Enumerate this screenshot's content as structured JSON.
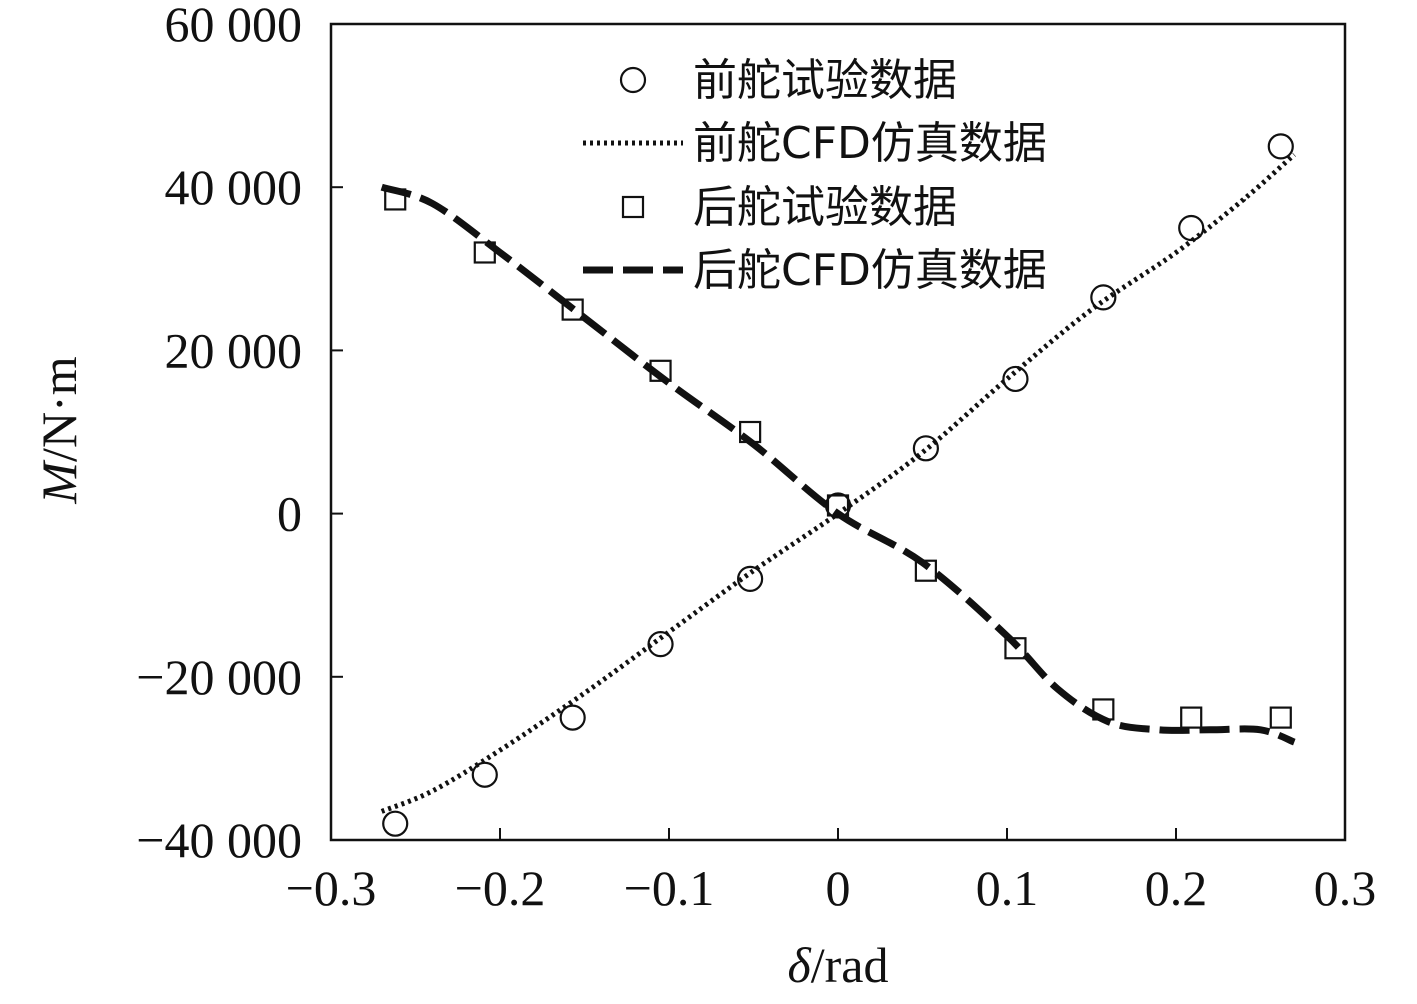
{
  "chart_data": {
    "type": "line",
    "xlabel_symbol": "δ",
    "xlabel_unit": "/rad",
    "ylabel_symbol": "M",
    "ylabel_unit": "/N·m",
    "xlim": [
      -0.3,
      0.3
    ],
    "ylim": [
      -40000,
      60000
    ],
    "x_ticks": [
      {
        "value": -0.3,
        "label": "−0.3"
      },
      {
        "value": -0.2,
        "label": "−0.2"
      },
      {
        "value": -0.1,
        "label": "−0.1"
      },
      {
        "value": 0,
        "label": "0"
      },
      {
        "value": 0.1,
        "label": "0.1"
      },
      {
        "value": 0.2,
        "label": "0.2"
      },
      {
        "value": 0.3,
        "label": "0.3"
      }
    ],
    "y_ticks": [
      {
        "value": 60000,
        "label": "60 000"
      },
      {
        "value": 40000,
        "label": "40 000"
      },
      {
        "value": 20000,
        "label": "20 000"
      },
      {
        "value": 0,
        "label": "0"
      },
      {
        "value": -20000,
        "label": "−20 000"
      },
      {
        "value": -40000,
        "label": "−40 000"
      }
    ],
    "grid": false,
    "legend_position": "top-center",
    "series": [
      {
        "name": "前舵试验数据",
        "kind": "scatter",
        "marker": "circle",
        "x": [
          -0.262,
          -0.209,
          -0.157,
          -0.105,
          -0.052,
          0,
          0.052,
          0.105,
          0.157,
          0.209,
          0.262
        ],
        "y": [
          -38000,
          -32000,
          -25000,
          -16000,
          -8000,
          1000,
          8000,
          16500,
          26500,
          35000,
          45000
        ]
      },
      {
        "name": "前舵CFD仿真数据",
        "kind": "line",
        "style": "dotted",
        "x": [
          -0.27,
          -0.24,
          -0.2,
          -0.15,
          -0.1,
          -0.05,
          0,
          0.05,
          0.1,
          0.15,
          0.2,
          0.24,
          0.27
        ],
        "y": [
          -36500,
          -34000,
          -29000,
          -22000,
          -14500,
          -7000,
          0,
          7500,
          16500,
          25000,
          32000,
          38500,
          44000
        ]
      },
      {
        "name": "后舵试验数据",
        "kind": "scatter",
        "marker": "square",
        "x": [
          -0.262,
          -0.209,
          -0.157,
          -0.105,
          -0.052,
          0,
          0.052,
          0.105,
          0.157,
          0.209,
          0.262
        ],
        "y": [
          38500,
          32000,
          25000,
          17500,
          10000,
          1000,
          -7000,
          -16500,
          -24000,
          -25000,
          -25000
        ]
      },
      {
        "name": "后舵CFD仿真数据",
        "kind": "line",
        "style": "dashed",
        "x": [
          -0.27,
          -0.24,
          -0.2,
          -0.15,
          -0.1,
          -0.05,
          0,
          0.05,
          0.1,
          0.13,
          0.16,
          0.19,
          0.22,
          0.25,
          0.27
        ],
        "y": [
          40000,
          38000,
          32000,
          24000,
          16000,
          8500,
          0,
          -6000,
          -15000,
          -21500,
          -25500,
          -26500,
          -26500,
          -26500,
          -28000
        ]
      }
    ]
  }
}
